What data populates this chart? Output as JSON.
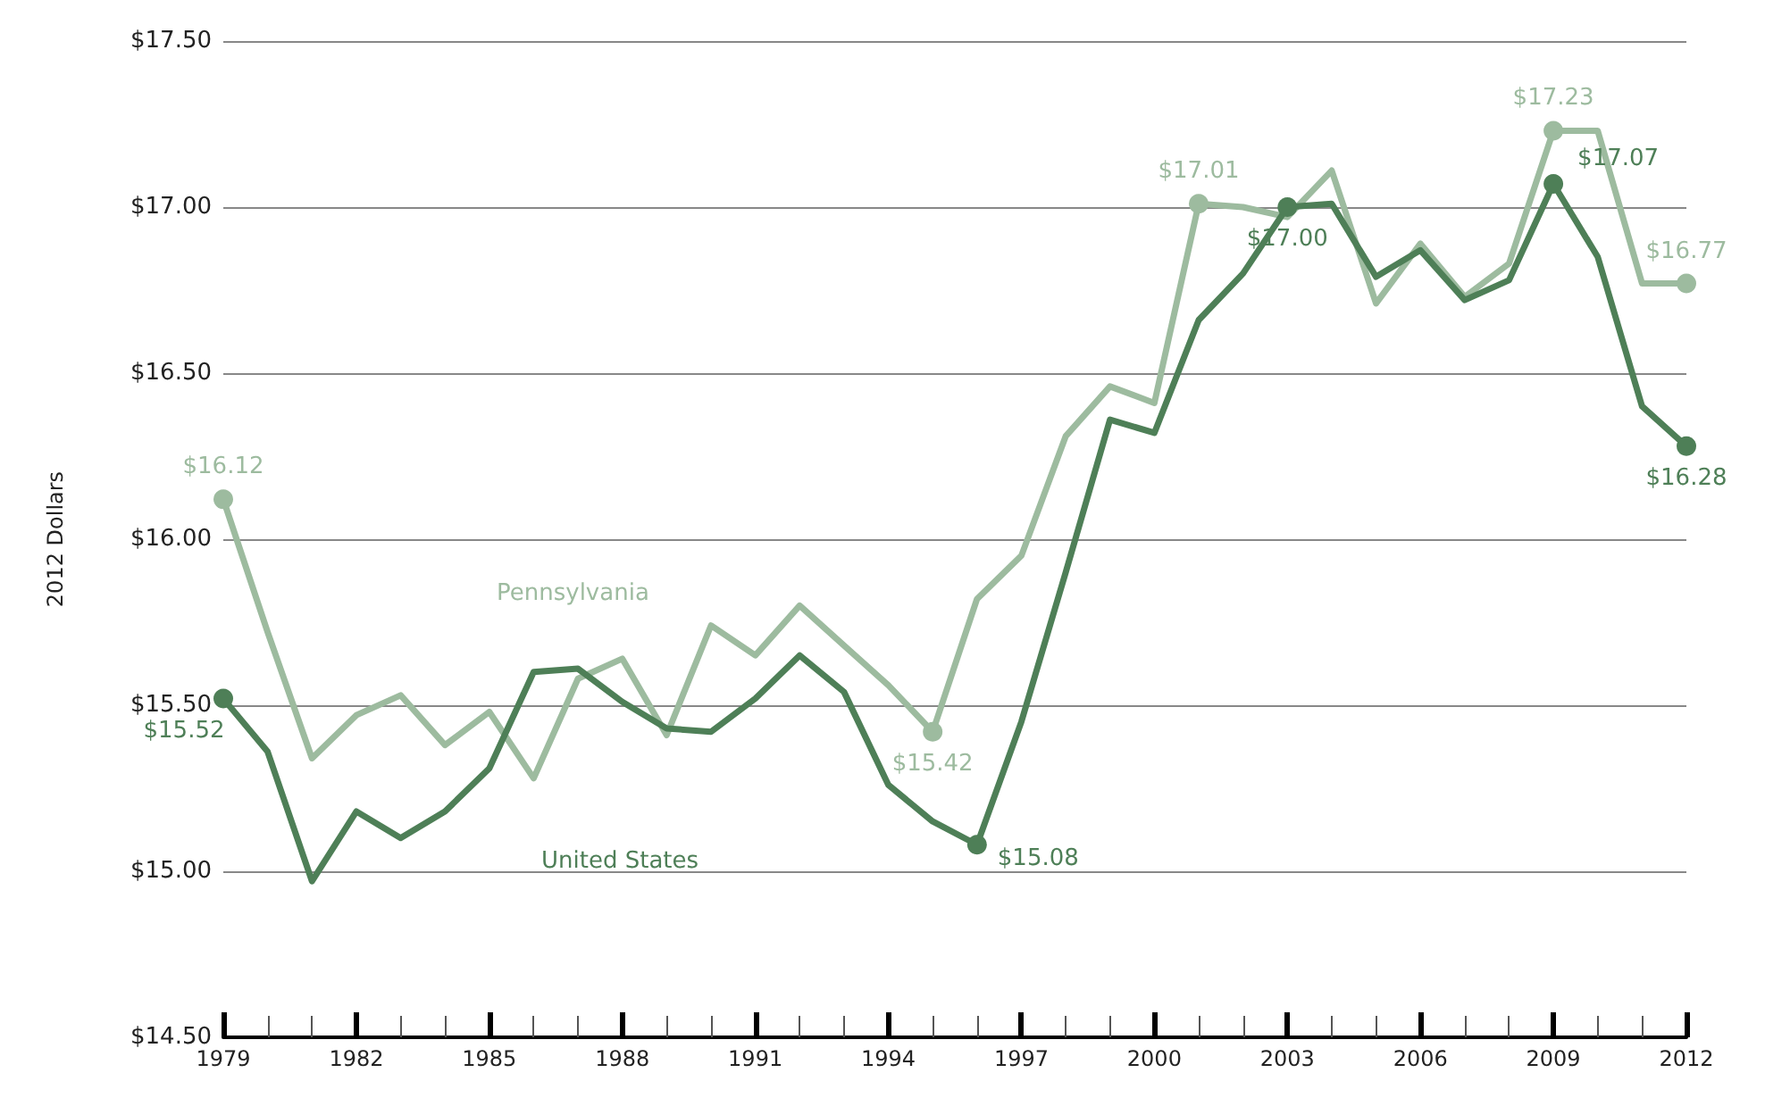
{
  "chart_data": {
    "type": "line",
    "ylabel": "2012 Dollars",
    "x": [
      1979,
      1980,
      1981,
      1982,
      1983,
      1984,
      1985,
      1986,
      1987,
      1988,
      1989,
      1990,
      1991,
      1992,
      1993,
      1994,
      1995,
      1996,
      1997,
      1998,
      1999,
      2000,
      2001,
      2002,
      2003,
      2004,
      2005,
      2006,
      2007,
      2008,
      2009,
      2010,
      2011,
      2012
    ],
    "series": [
      {
        "name": "Pennsylvania",
        "color": "#9dbb9f",
        "values": [
          16.12,
          15.72,
          15.34,
          15.47,
          15.53,
          15.38,
          15.48,
          15.28,
          15.58,
          15.64,
          15.41,
          15.74,
          15.65,
          15.8,
          15.68,
          15.56,
          15.42,
          15.82,
          15.95,
          16.31,
          16.46,
          16.41,
          17.01,
          17.0,
          16.97,
          17.11,
          16.71,
          16.89,
          16.73,
          16.83,
          17.23,
          17.23,
          16.77,
          16.77
        ],
        "value_labels": [
          "$16.12",
          null,
          null,
          null,
          null,
          null,
          null,
          null,
          null,
          null,
          null,
          null,
          null,
          null,
          null,
          null,
          "$15.42",
          null,
          null,
          null,
          null,
          null,
          "$17.01",
          null,
          null,
          null,
          null,
          null,
          null,
          null,
          "$17.23",
          null,
          null,
          "$16.77"
        ]
      },
      {
        "name": "United States",
        "color": "#4e7f57",
        "values": [
          15.52,
          15.36,
          14.97,
          15.18,
          15.1,
          15.18,
          15.31,
          15.6,
          15.61,
          15.51,
          15.43,
          15.42,
          15.52,
          15.65,
          15.54,
          15.26,
          15.15,
          15.08,
          15.45,
          15.9,
          16.36,
          16.32,
          16.66,
          16.8,
          17.0,
          17.01,
          16.79,
          16.87,
          16.72,
          16.78,
          17.07,
          16.85,
          16.4,
          16.28
        ],
        "value_labels": [
          "$15.52",
          null,
          null,
          null,
          null,
          null,
          null,
          null,
          null,
          null,
          null,
          null,
          null,
          null,
          null,
          null,
          null,
          "$15.08",
          null,
          null,
          null,
          null,
          null,
          null,
          "$17.00",
          null,
          null,
          null,
          null,
          null,
          "$17.07",
          null,
          null,
          "$16.28"
        ]
      }
    ],
    "xlim": [
      1979,
      2012
    ],
    "xticks": [
      1979,
      {
        "value": 1980,
        "label": null
      },
      {
        "value": 1981,
        "label": null
      },
      1982,
      {
        "value": 1983,
        "label": null
      },
      {
        "value": 1984,
        "label": null
      },
      1985,
      {
        "value": 1986,
        "label": null
      },
      {
        "value": 1987,
        "label": null
      },
      1988,
      {
        "value": 1989,
        "label": null
      },
      {
        "value": 1990,
        "label": null
      },
      1991,
      {
        "value": 1992,
        "label": null
      },
      {
        "value": 1993,
        "label": null
      },
      1994,
      {
        "value": 1995,
        "label": null
      },
      {
        "value": 1996,
        "label": null
      },
      1997,
      {
        "value": 1998,
        "label": null
      },
      {
        "value": 1999,
        "label": null
      },
      2000,
      {
        "value": 2001,
        "label": null
      },
      {
        "value": 2002,
        "label": null
      },
      2003,
      {
        "value": 2004,
        "label": null
      },
      {
        "value": 2005,
        "label": null
      },
      2006,
      {
        "value": 2007,
        "label": null
      },
      {
        "value": 2008,
        "label": null
      },
      2009,
      {
        "value": 2010,
        "label": null
      },
      {
        "value": 2011,
        "label": null
      },
      2012
    ],
    "ylim": [
      14.5,
      17.5
    ],
    "yticks": [
      {
        "value": 14.5,
        "label": "$14.50"
      },
      {
        "value": 15,
        "label": "$15.00"
      },
      {
        "value": 15.5,
        "label": "$15.50"
      },
      {
        "value": 16,
        "label": "$16.00"
      },
      {
        "value": 16.5,
        "label": "$16.50"
      },
      {
        "value": 17,
        "label": "$17.00"
      },
      {
        "value": 17.5,
        "label": "$17.50"
      }
    ],
    "grid": "y",
    "legend": false,
    "line_style": "solid"
  }
}
